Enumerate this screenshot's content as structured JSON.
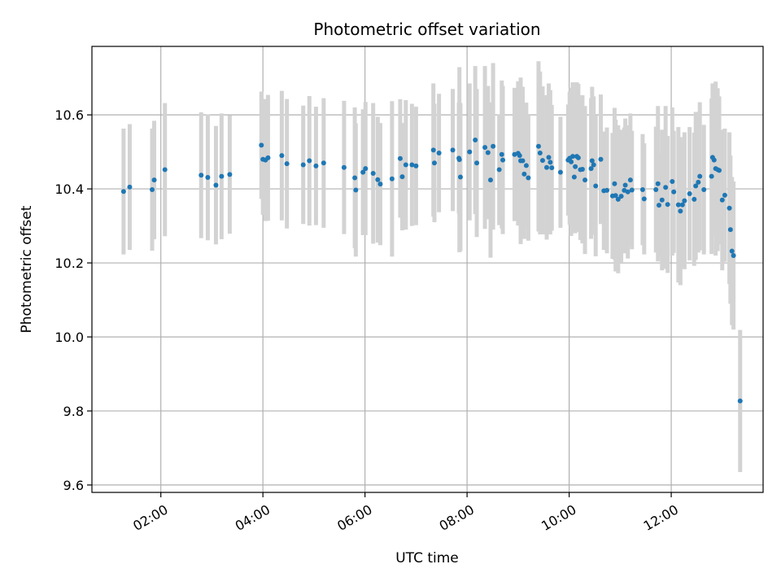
{
  "chart_data": {
    "type": "scatter",
    "title": "Photometric offset variation",
    "xlabel": "UTC time",
    "ylabel": "Photometric offset",
    "x_unit": "hours UTC",
    "xlim": [
      0.65,
      13.8
    ],
    "ylim": [
      9.58,
      10.785
    ],
    "x_ticks": [
      {
        "value": 2,
        "label": "02:00"
      },
      {
        "value": 4,
        "label": "04:00"
      },
      {
        "value": 6,
        "label": "06:00"
      },
      {
        "value": 8,
        "label": "08:00"
      },
      {
        "value": 10,
        "label": "10:00"
      },
      {
        "value": 12,
        "label": "12:00"
      }
    ],
    "y_ticks": [
      {
        "value": 9.6,
        "label": "9.6"
      },
      {
        "value": 9.8,
        "label": "9.8"
      },
      {
        "value": 10.0,
        "label": "10.0"
      },
      {
        "value": 10.2,
        "label": "10.2"
      },
      {
        "value": 10.4,
        "label": "10.4"
      },
      {
        "value": 10.6,
        "label": "10.6"
      }
    ],
    "grid": true,
    "colors": {
      "point": "#1f77b4",
      "errorbar": "#d3d3d3",
      "grid": "#b0b0b0"
    },
    "series": [
      {
        "points": [
          [
            1.27,
            10.393,
            0.17
          ],
          [
            1.39,
            10.405,
            0.17
          ],
          [
            1.83,
            10.398,
            0.165
          ],
          [
            1.87,
            10.424,
            0.16
          ],
          [
            2.08,
            10.452,
            0.18
          ],
          [
            2.79,
            10.437,
            0.17
          ],
          [
            2.92,
            10.431,
            0.17
          ],
          [
            3.08,
            10.41,
            0.16
          ],
          [
            3.19,
            10.434,
            0.17
          ],
          [
            3.35,
            10.439,
            0.16
          ],
          [
            3.97,
            10.518,
            0.145
          ],
          [
            4.0,
            10.48,
            0.15
          ],
          [
            4.05,
            10.478,
            0.165
          ],
          [
            4.1,
            10.484,
            0.17
          ],
          [
            4.37,
            10.49,
            0.175
          ],
          [
            4.47,
            10.468,
            0.175
          ],
          [
            4.79,
            10.465,
            0.16
          ],
          [
            4.91,
            10.476,
            0.175
          ],
          [
            5.04,
            10.462,
            0.16
          ],
          [
            5.19,
            10.47,
            0.175
          ],
          [
            5.59,
            10.458,
            0.18
          ],
          [
            5.8,
            10.43,
            0.19
          ],
          [
            5.82,
            10.397,
            0.18
          ],
          [
            5.96,
            10.445,
            0.17
          ],
          [
            6.01,
            10.455,
            0.18
          ],
          [
            6.16,
            10.442,
            0.19
          ],
          [
            6.25,
            10.425,
            0.17
          ],
          [
            6.3,
            10.413,
            0.165
          ],
          [
            6.53,
            10.427,
            0.21
          ],
          [
            6.69,
            10.482,
            0.16
          ],
          [
            6.73,
            10.433,
            0.145
          ],
          [
            6.8,
            10.465,
            0.175
          ],
          [
            6.92,
            10.465,
            0.165
          ],
          [
            7.0,
            10.462,
            0.16
          ],
          [
            7.34,
            10.505,
            0.18
          ],
          [
            7.36,
            10.47,
            0.16
          ],
          [
            7.45,
            10.497,
            0.16
          ],
          [
            7.72,
            10.505,
            0.165
          ],
          [
            7.84,
            10.483,
            0.15
          ],
          [
            7.85,
            10.479,
            0.25
          ],
          [
            7.87,
            10.432,
            0.2
          ],
          [
            8.05,
            10.5,
            0.185
          ],
          [
            8.16,
            10.532,
            0.2
          ],
          [
            8.19,
            10.47,
            0.2
          ],
          [
            8.35,
            10.512,
            0.22
          ],
          [
            8.41,
            10.498,
            0.18
          ],
          [
            8.46,
            10.424,
            0.21
          ],
          [
            8.51,
            10.515,
            0.225
          ],
          [
            8.63,
            10.452,
            0.15
          ],
          [
            8.68,
            10.493,
            0.2
          ],
          [
            8.7,
            10.478,
            0.2
          ],
          [
            8.93,
            10.493,
            0.18
          ],
          [
            9.0,
            10.496,
            0.195
          ],
          [
            9.03,
            10.49,
            0.185
          ],
          [
            9.05,
            10.476,
            0.225
          ],
          [
            9.09,
            10.476,
            0.2
          ],
          [
            9.12,
            10.44,
            0.175
          ],
          [
            9.16,
            10.463,
            0.17
          ],
          [
            9.2,
            10.43,
            0.17
          ],
          [
            9.4,
            10.515,
            0.23
          ],
          [
            9.43,
            10.497,
            0.22
          ],
          [
            9.48,
            10.477,
            0.2
          ],
          [
            9.56,
            10.458,
            0.195
          ],
          [
            9.6,
            10.485,
            0.2
          ],
          [
            9.63,
            10.472,
            0.195
          ],
          [
            9.66,
            10.457,
            0.17
          ],
          [
            9.83,
            10.445,
            0.15
          ],
          [
            9.98,
            10.478,
            0.15
          ],
          [
            10.01,
            10.483,
            0.18
          ],
          [
            10.04,
            10.473,
            0.2
          ],
          [
            10.07,
            10.488,
            0.2
          ],
          [
            10.1,
            10.432,
            0.15
          ],
          [
            10.12,
            10.46,
            0.18
          ],
          [
            10.15,
            10.488,
            0.2
          ],
          [
            10.18,
            10.484,
            0.2
          ],
          [
            10.22,
            10.452,
            0.19
          ],
          [
            10.26,
            10.453,
            0.2
          ],
          [
            10.31,
            10.424,
            0.2
          ],
          [
            10.43,
            10.455,
            0.19
          ],
          [
            10.45,
            10.476,
            0.2
          ],
          [
            10.48,
            10.465,
            0.185
          ],
          [
            10.52,
            10.408,
            0.19
          ],
          [
            10.62,
            10.48,
            0.175
          ],
          [
            10.68,
            10.395,
            0.16
          ],
          [
            10.74,
            10.396,
            0.17
          ],
          [
            10.85,
            10.381,
            0.17
          ],
          [
            10.89,
            10.414,
            0.205
          ],
          [
            10.91,
            10.382,
            0.205
          ],
          [
            10.96,
            10.372,
            0.2
          ],
          [
            11.02,
            10.38,
            0.18
          ],
          [
            11.08,
            10.396,
            0.17
          ],
          [
            11.1,
            10.41,
            0.18
          ],
          [
            11.15,
            10.392,
            0.18
          ],
          [
            11.2,
            10.424,
            0.18
          ],
          [
            11.23,
            10.397,
            0.16
          ],
          [
            11.44,
            10.398,
            0.15
          ],
          [
            11.47,
            10.373,
            0.15
          ],
          [
            11.7,
            10.398,
            0.17
          ],
          [
            11.74,
            10.414,
            0.21
          ],
          [
            11.76,
            10.356,
            0.14
          ],
          [
            11.82,
            10.37,
            0.19
          ],
          [
            11.89,
            10.404,
            0.22
          ],
          [
            11.93,
            10.358,
            0.185
          ],
          [
            12.02,
            10.42,
            0.2
          ],
          [
            12.05,
            10.392,
            0.165
          ],
          [
            12.14,
            10.357,
            0.21
          ],
          [
            12.18,
            10.34,
            0.2
          ],
          [
            12.22,
            10.357,
            0.17
          ],
          [
            12.26,
            10.368,
            0.185
          ],
          [
            12.36,
            10.387,
            0.18
          ],
          [
            12.45,
            10.372,
            0.18
          ],
          [
            12.48,
            10.408,
            0.2
          ],
          [
            12.53,
            10.418,
            0.19
          ],
          [
            12.56,
            10.434,
            0.2
          ],
          [
            12.64,
            10.398,
            0.175
          ],
          [
            12.79,
            10.434,
            0.21
          ],
          [
            12.81,
            10.485,
            0.2
          ],
          [
            12.84,
            10.478,
            0.2
          ],
          [
            12.87,
            10.455,
            0.235
          ],
          [
            12.91,
            10.452,
            0.22
          ],
          [
            12.94,
            10.45,
            0.2
          ],
          [
            13.0,
            10.37,
            0.19
          ],
          [
            13.05,
            10.383,
            0.18
          ],
          [
            13.14,
            10.348,
            0.205
          ],
          [
            13.16,
            10.29,
            0.2
          ],
          [
            13.19,
            10.232,
            0.2
          ],
          [
            13.22,
            10.22,
            0.2
          ],
          [
            13.35,
            9.827,
            0.192
          ]
        ]
      }
    ]
  }
}
